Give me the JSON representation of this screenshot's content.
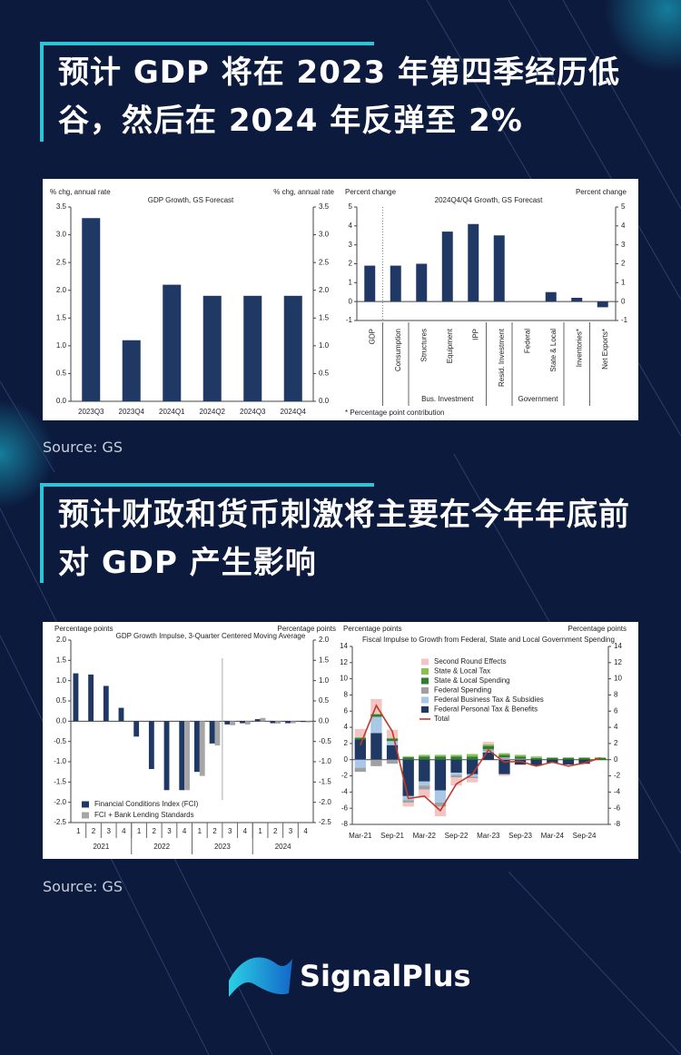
{
  "headings": [
    "预计 GDP 将在 2023 年第四季经历低谷，然后在 2024 年反弹至 2%",
    "预计财政和货币刺激将主要在今年年底前对 GDP 产生影响"
  ],
  "sources": [
    "Source: GS",
    "Source: GS"
  ],
  "logo": "SignalPlus",
  "chart_data": [
    {
      "type": "bar",
      "title": "GDP Growth, GS Forecast",
      "y_label": "% chg, annual rate",
      "y2_label": "% chg, annual rate",
      "categories": [
        "2023Q3",
        "2023Q4",
        "2024Q1",
        "2024Q2",
        "2024Q3",
        "2024Q4"
      ],
      "values": [
        3.3,
        1.1,
        2.1,
        1.9,
        1.9,
        1.9
      ],
      "color": "#1f3864",
      "ylim": [
        0,
        3.5
      ],
      "yticks": [
        {
          "value": 0,
          "label": "0.0"
        },
        0.5,
        {
          "value": 1,
          "label": "1.0"
        },
        1.5,
        {
          "value": 2,
          "label": "2.0"
        },
        2.5,
        {
          "value": 3,
          "label": "3.0"
        },
        3.5
      ],
      "y2lim": [
        0,
        3.5
      ],
      "y2ticks": [
        {
          "value": 0,
          "label": "0.0"
        },
        0.5,
        {
          "value": 1,
          "label": "1.0"
        },
        1.5,
        {
          "value": 2,
          "label": "2.0"
        },
        2.5,
        {
          "value": 3,
          "label": "3.0"
        },
        3.5
      ]
    },
    {
      "type": "bar",
      "title": "2024Q4/Q4 Growth, GS Forecast",
      "y_label": "Percent change",
      "y2_label": "Percent change",
      "categories": [
        "GDP",
        "Consumption",
        "Structures",
        "Equipment",
        "IPP",
        "Resid. Investment",
        "Federal",
        "State & Local",
        "Inventories*",
        "Net Exports*"
      ],
      "category_groups": [
        null,
        null,
        "Bus. Investment",
        "Bus. Investment",
        "Bus. Investment",
        null,
        "Government",
        "Government",
        null,
        null
      ],
      "values": [
        1.9,
        1.9,
        2.0,
        3.7,
        4.1,
        3.5,
        0,
        0.5,
        0.2,
        -0.3
      ],
      "color": "#1f3864",
      "ylim": [
        -1,
        5
      ],
      "yticks": [
        -1,
        0,
        1,
        2,
        3,
        4,
        5
      ],
      "y2lim": [
        -1,
        5
      ],
      "y2ticks": [
        -1,
        0,
        1,
        2,
        3,
        4,
        5
      ],
      "footnote": "* Percentage point contribution"
    },
    {
      "type": "bar",
      "title": "GDP Growth Impulse, 3-Quarter Centered Moving Average",
      "y_label": "Percentage points",
      "y2_label": "Percentage points",
      "categories": [
        "1",
        "2",
        "3",
        "4",
        "1",
        "2",
        "3",
        "4",
        "1",
        "2",
        "3",
        "4",
        "1",
        "2",
        "3",
        "4"
      ],
      "category_groups": [
        "2021",
        "2021",
        "2021",
        "2021",
        "2022",
        "2022",
        "2022",
        "2022",
        "2023",
        "2023",
        "2023",
        "2023",
        "2024",
        "2024",
        "2024",
        "2024"
      ],
      "series": [
        {
          "name": "Financial Conditions Index (FCI)",
          "color": "#1f3864",
          "values": [
            1.18,
            1.15,
            0.87,
            0.33,
            -0.38,
            -1.18,
            -1.7,
            -1.7,
            -1.25,
            -0.55,
            -0.08,
            -0.05,
            0.05,
            -0.05,
            -0.05,
            -0.02
          ]
        },
        {
          "name": "FCI + Bank Lending Standards",
          "color": "#a6a6a6",
          "values": [
            null,
            null,
            null,
            null,
            null,
            null,
            null,
            -1.7,
            -1.35,
            -0.6,
            -0.1,
            -0.08,
            0.08,
            -0.06,
            -0.05,
            -0.03
          ]
        }
      ],
      "ylim": [
        -2.5,
        2.0
      ],
      "yticks": [
        -2.5,
        {
          "value": -2,
          "label": "-2.0"
        },
        -1.5,
        {
          "value": -1,
          "label": "-1.0"
        },
        -0.5,
        {
          "value": 0,
          "label": "0.0"
        },
        0.5,
        {
          "value": 1,
          "label": "1.0"
        },
        1.5,
        {
          "value": 2,
          "label": "2.0"
        }
      ],
      "y2lim": [
        -2.5,
        2.0
      ],
      "y2ticks": [
        -2.5,
        {
          "value": -2,
          "label": "-2.0"
        },
        -1.5,
        {
          "value": -1,
          "label": "-1.0"
        },
        -0.5,
        {
          "value": 0,
          "label": "0.0"
        },
        0.5,
        {
          "value": 1,
          "label": "1.0"
        },
        1.5,
        {
          "value": 2,
          "label": "2.0"
        }
      ]
    },
    {
      "type": "bar",
      "stacked": true,
      "title": "Fiscal Impulse to Growth from Federal, State and Local Government Spending",
      "y_label": "Percentage points",
      "y2_label": "Percentage points",
      "categories": [
        "Mar-21",
        null,
        "Sep-21",
        null,
        "Mar-22",
        null,
        "Sep-22",
        null,
        "Mar-23",
        null,
        "Sep-23",
        null,
        "Mar-24",
        null,
        "Sep-24",
        null
      ],
      "series": [
        {
          "name": "Second Round Effects",
          "color": "#f2c4c4",
          "values": [
            1,
            1.8,
            1,
            -0.5,
            -1,
            -1.2,
            -1,
            -0.5,
            0.3,
            -0.2,
            -0.1,
            -0.1,
            0,
            -0.1,
            -0.1,
            0
          ]
        },
        {
          "name": "State & Local Tax",
          "color": "#8cc152",
          "values": [
            0.1,
            0.1,
            0.1,
            0.1,
            0.2,
            0.2,
            0.2,
            0.3,
            0.2,
            0.2,
            0.2,
            0.2,
            0.1,
            0.1,
            0.1,
            0.1
          ]
        },
        {
          "name": "State & Local Spending",
          "color": "#2e7d32",
          "values": [
            0.2,
            0.3,
            0.3,
            0.3,
            0.4,
            0.4,
            0.4,
            0.4,
            0.4,
            0.3,
            0.3,
            0.2,
            0.2,
            0.2,
            0.2,
            0.2
          ]
        },
        {
          "name": "Federal Spending",
          "color": "#a0a0a0",
          "values": [
            -0.5,
            -0.8,
            -0.5,
            -0.3,
            -0.5,
            -0.5,
            -0.3,
            -0.2,
            0.2,
            0.2,
            0.1,
            0,
            0,
            0,
            0,
            0
          ]
        },
        {
          "name": "Federal Business Tax & Subsidies",
          "color": "#a9c8e8",
          "values": [
            -1,
            2,
            0.5,
            -0.5,
            -0.5,
            -1.5,
            -0.3,
            -0.3,
            0.2,
            0.1,
            0,
            0,
            0,
            0,
            0,
            0
          ]
        },
        {
          "name": "Federal Personal Tax & Benefits",
          "color": "#1f3864",
          "values": [
            2.5,
            3.3,
            1.8,
            -4.5,
            -2.7,
            -3.8,
            -1.6,
            -1.8,
            0.9,
            -1.8,
            -0.6,
            -0.7,
            -0.4,
            -0.6,
            -0.5,
            0
          ]
        },
        {
          "name": "Total",
          "type": "line",
          "color": "#c0392b",
          "values": [
            1.8,
            6.7,
            3.5,
            -4.8,
            -4.5,
            -6.3,
            -3,
            -1.8,
            1.2,
            -0.3,
            -0.2,
            -0.8,
            -0.3,
            -0.8,
            -0.4,
            0.2
          ]
        }
      ],
      "ylim": [
        -8,
        14
      ],
      "yticks": [
        -8,
        -6,
        -4,
        -2,
        0,
        2,
        4,
        6,
        8,
        10,
        12,
        14
      ],
      "y2lim": [
        -8,
        14
      ],
      "y2ticks": [
        -8,
        -6,
        -4,
        -2,
        0,
        2,
        4,
        6,
        8,
        10,
        12,
        14
      ]
    }
  ]
}
